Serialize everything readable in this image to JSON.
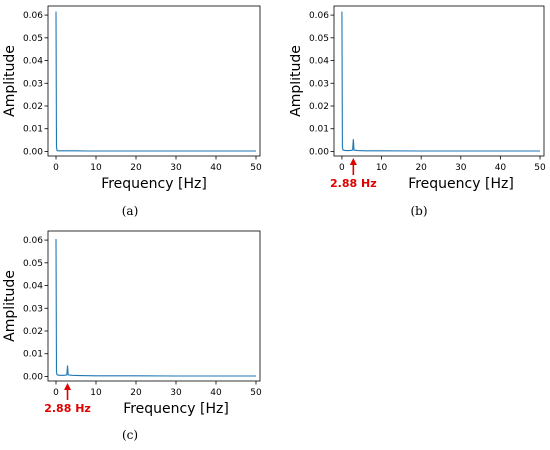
{
  "chart_data": [
    {
      "type": "line",
      "caption": "(a)",
      "xlabel": "Frequency [Hz]",
      "ylabel": "Amplitude",
      "xlim": [
        -2,
        51
      ],
      "ylim": [
        -0.002,
        0.064
      ],
      "xticks": [
        0,
        10,
        20,
        30,
        40,
        50
      ],
      "yticks": [
        0.0,
        0.01,
        0.02,
        0.03,
        0.04,
        0.05,
        0.06
      ],
      "line_color": "#1f77b4",
      "series": [
        {
          "x": [
            0,
            0.12,
            0.25,
            0.5,
            1,
            2,
            3,
            5,
            8,
            12,
            20,
            30,
            40,
            50
          ],
          "values": [
            0.0615,
            0.002,
            0.0005,
            0.0003,
            0.0003,
            0.0003,
            0.0003,
            0.0003,
            0.0002,
            0.0002,
            0.0002,
            0.0002,
            0.0002,
            0.0002
          ]
        }
      ],
      "annotation": null
    },
    {
      "type": "line",
      "caption": "(b)",
      "xlabel": "Frequency [Hz]",
      "ylabel": "Amplitude",
      "xlim": [
        -2,
        51
      ],
      "ylim": [
        -0.002,
        0.064
      ],
      "xticks": [
        0,
        10,
        20,
        30,
        40,
        50
      ],
      "yticks": [
        0.0,
        0.01,
        0.02,
        0.03,
        0.04,
        0.05,
        0.06
      ],
      "line_color": "#1f77b4",
      "series": [
        {
          "x": [
            0,
            0.12,
            0.25,
            0.5,
            1,
            2,
            2.7,
            2.88,
            3.05,
            4,
            6,
            10,
            20,
            30,
            40,
            50
          ],
          "values": [
            0.0615,
            0.002,
            0.0007,
            0.0005,
            0.0004,
            0.0004,
            0.0006,
            0.0054,
            0.0006,
            0.0004,
            0.0003,
            0.0003,
            0.0002,
            0.0002,
            0.0002,
            0.0002
          ]
        }
      ],
      "annotation": {
        "text": "2.88 Hz",
        "x": 2.88,
        "color": "#e00000"
      }
    },
    {
      "type": "line",
      "caption": "(c)",
      "xlabel": "Frequency [Hz]",
      "ylabel": "Amplitude",
      "xlim": [
        -2,
        51
      ],
      "ylim": [
        -0.002,
        0.064
      ],
      "xticks": [
        0,
        10,
        20,
        30,
        40,
        50
      ],
      "yticks": [
        0.0,
        0.01,
        0.02,
        0.03,
        0.04,
        0.05,
        0.06
      ],
      "line_color": "#1f77b4",
      "series": [
        {
          "x": [
            0,
            0.12,
            0.25,
            0.5,
            1,
            2,
            2.7,
            2.88,
            3.05,
            4,
            6,
            10,
            20,
            30,
            40,
            50
          ],
          "values": [
            0.0605,
            0.002,
            0.0008,
            0.0006,
            0.0005,
            0.0005,
            0.0007,
            0.0048,
            0.0007,
            0.0005,
            0.0004,
            0.0003,
            0.0003,
            0.0002,
            0.0002,
            0.0002
          ]
        }
      ],
      "annotation": {
        "text": "2.88 Hz",
        "x": 2.88,
        "color": "#e00000"
      }
    }
  ]
}
